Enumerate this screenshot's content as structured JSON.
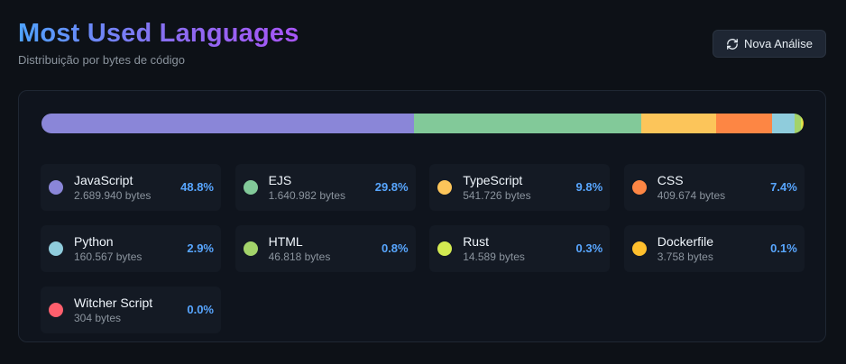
{
  "header": {
    "title": "Most Used Languages",
    "subtitle": "Distribuição por bytes de código",
    "button_label": "Nova Análise",
    "button_icon": "refresh-icon"
  },
  "colors": {
    "accent": "#58a6ff",
    "background": "#0d1117"
  },
  "languages": [
    {
      "name": "JavaScript",
      "bytes": "2.689.940 bytes",
      "percent": "48.8%",
      "value": 48.8,
      "color": "#8a86d8"
    },
    {
      "name": "EJS",
      "bytes": "1.640.982 bytes",
      "percent": "29.8%",
      "value": 29.8,
      "color": "#82c999"
    },
    {
      "name": "TypeScript",
      "bytes": "541.726 bytes",
      "percent": "9.8%",
      "value": 9.8,
      "color": "#fcc55a"
    },
    {
      "name": "CSS",
      "bytes": "409.674 bytes",
      "percent": "7.4%",
      "value": 7.4,
      "color": "#fd8644"
    },
    {
      "name": "Python",
      "bytes": "160.567 bytes",
      "percent": "2.9%",
      "value": 2.9,
      "color": "#8fccdc"
    },
    {
      "name": "HTML",
      "bytes": "46.818 bytes",
      "percent": "0.8%",
      "value": 0.8,
      "color": "#a3d36a"
    },
    {
      "name": "Rust",
      "bytes": "14.589 bytes",
      "percent": "0.3%",
      "value": 0.3,
      "color": "#d3ea51"
    },
    {
      "name": "Dockerfile",
      "bytes": "3.758 bytes",
      "percent": "0.1%",
      "value": 0.1,
      "color": "#ffbf2d"
    },
    {
      "name": "Witcher Script",
      "bytes": "304 bytes",
      "percent": "0.0%",
      "value": 0.0,
      "color": "#ff5f6d"
    }
  ]
}
